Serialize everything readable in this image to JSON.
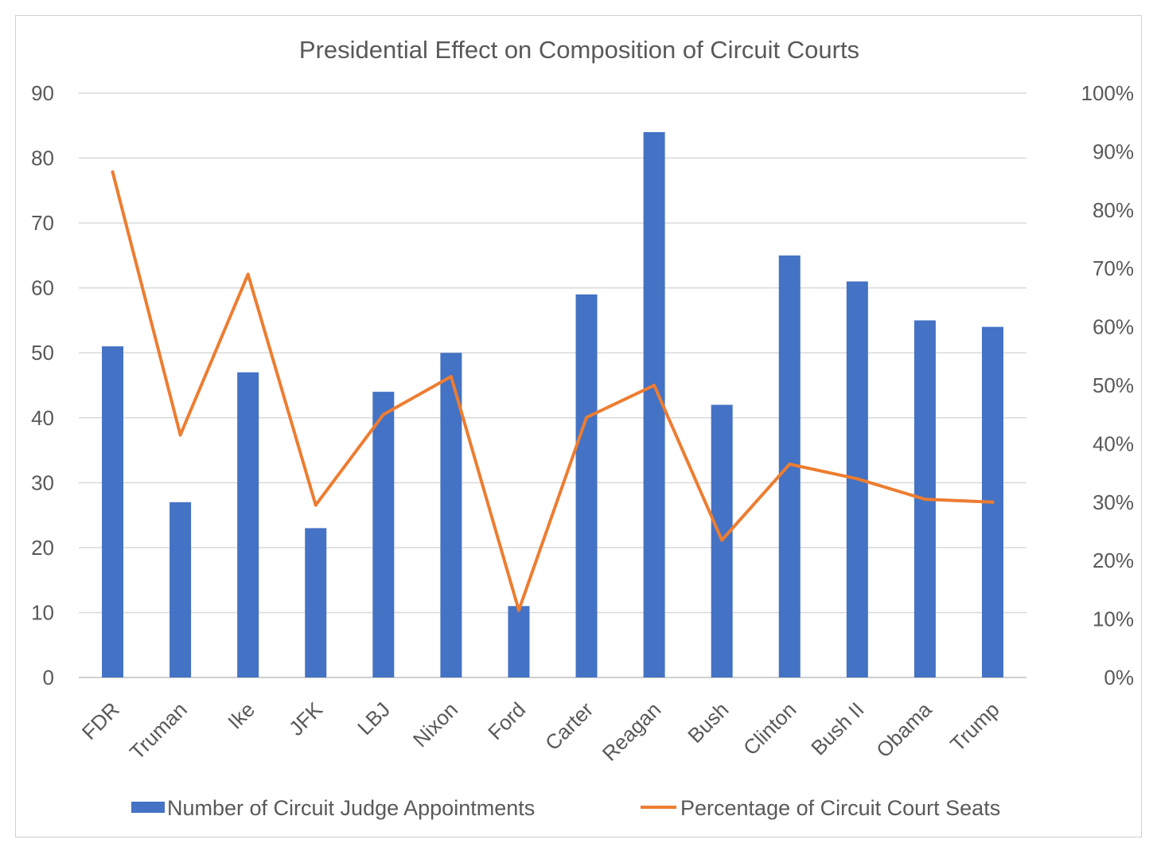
{
  "chart_data": {
    "type": "bar",
    "title": "Presidential Effect on Composition of Circuit Courts",
    "categories": [
      "FDR",
      "Truman",
      "Ike",
      "JFK",
      "LBJ",
      "Nixon",
      "Ford",
      "Carter",
      "Reagan",
      "Bush",
      "Clinton",
      "Bush II",
      "Obama",
      "Trump"
    ],
    "series": [
      {
        "name": "Number of Circuit Judge Appointments",
        "type": "bar",
        "axis": "left",
        "color": "#4472C4",
        "values": [
          51,
          27,
          47,
          23,
          44,
          50,
          11,
          59,
          84,
          42,
          65,
          61,
          55,
          54
        ]
      },
      {
        "name": "Percentage of Circuit Court Seats",
        "type": "line",
        "axis": "right",
        "color": "#ED7D31",
        "values": [
          86.5,
          41.5,
          69,
          29.5,
          45,
          51.5,
          11.5,
          44.5,
          50,
          23.5,
          36.5,
          34,
          30.5,
          30
        ]
      }
    ],
    "y_left": {
      "min": 0,
      "max": 90,
      "step": 10,
      "ticks": [
        "0",
        "10",
        "20",
        "30",
        "40",
        "50",
        "60",
        "70",
        "80",
        "90"
      ]
    },
    "y_right": {
      "min": 0,
      "max": 100,
      "step": 10,
      "ticks": [
        "0%",
        "10%",
        "20%",
        "30%",
        "40%",
        "50%",
        "60%",
        "70%",
        "80%",
        "90%",
        "100%"
      ]
    },
    "grid": true,
    "legend": "bottom"
  }
}
